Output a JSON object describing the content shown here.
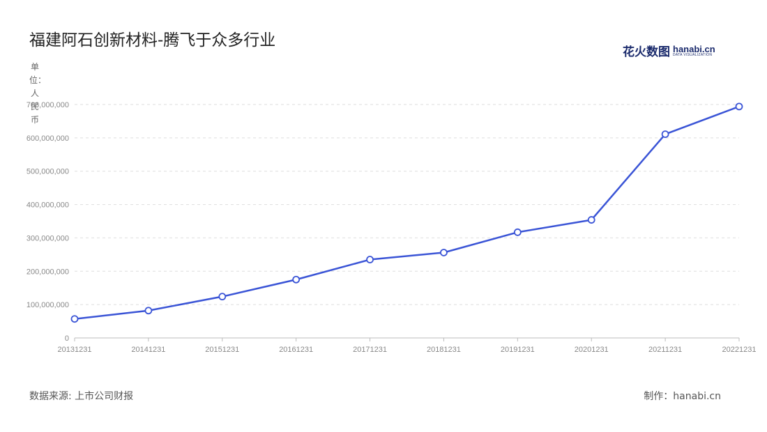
{
  "title": "福建阿石创新材料-腾飞于众多行业",
  "brand": {
    "cn": "花火数图",
    "en": "hanabi.cn",
    "sub": "DATA VISUALIZATION"
  },
  "unit_label": "单位：人民币",
  "source": "数据来源: 上市公司财报",
  "credit": "制作：hanabi.cn",
  "colors": {
    "line": "#3a54d6",
    "grid": "#dddddd",
    "axis_text": "#888888"
  },
  "chart_data": {
    "type": "line",
    "categories": [
      "20131231",
      "20141231",
      "20151231",
      "20161231",
      "20171231",
      "20181231",
      "20191231",
      "20201231",
      "20211231",
      "20221231"
    ],
    "series": [
      {
        "values": [
          57000000,
          82000000,
          124000000,
          175000000,
          235000000,
          256000000,
          317000000,
          354000000,
          611000000,
          694000000
        ]
      }
    ],
    "yticks": [
      "0",
      "100,000,000",
      "200,000,000",
      "300,000,000",
      "400,000,000",
      "500,000,000",
      "600,000,000",
      "700,000,000"
    ],
    "ylim": [
      0,
      700000000
    ],
    "grid": true,
    "legend": "none"
  }
}
